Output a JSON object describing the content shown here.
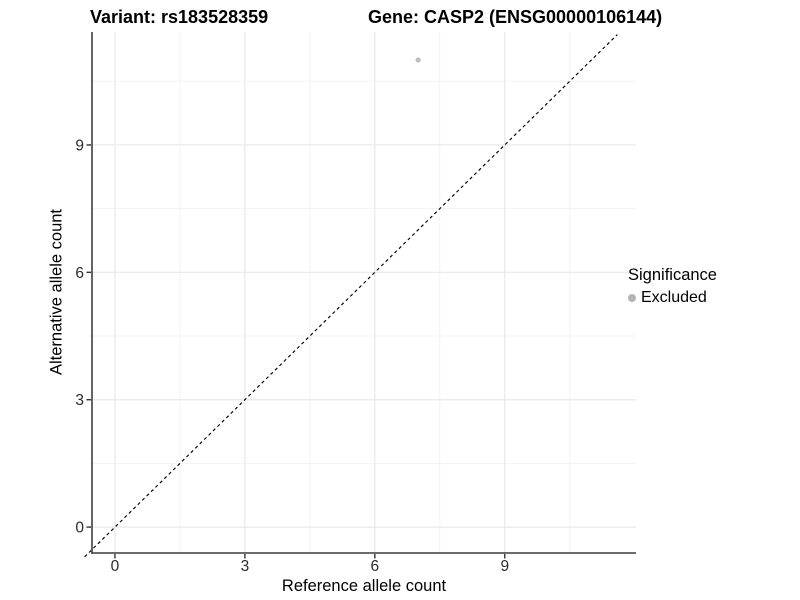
{
  "chart_data": {
    "type": "scatter",
    "titles": {
      "left": "Variant: rs183528359",
      "right": "Gene: CASP2 (ENSG00000106144)"
    },
    "x_axis": {
      "label": "Reference allele count",
      "ticks": [
        0,
        3,
        6,
        9
      ],
      "minor_gridlines": [
        1.5,
        4.5,
        7.5,
        10.5
      ],
      "range": [
        -0.53,
        12.03
      ]
    },
    "y_axis": {
      "label": "Alternative allele count",
      "ticks": [
        0,
        3,
        6,
        9
      ],
      "minor_gridlines": [
        1.5,
        4.5,
        7.5,
        10.5
      ],
      "range": [
        -0.61,
        11.66
      ]
    },
    "series": [
      {
        "name": "Excluded",
        "color": "#bdbdbd",
        "points": [
          {
            "x": 7,
            "y": 11
          }
        ]
      }
    ],
    "reference_line": {
      "equation": "y = x",
      "style": "dashed",
      "color": "#000000",
      "span": [
        -0.7,
        11.6
      ]
    },
    "legend": {
      "position": "right",
      "title": "Significance",
      "items": [
        {
          "label": "Excluded",
          "color": "#b5b5b5"
        }
      ]
    },
    "grid": {
      "major": true,
      "minor": true,
      "major_color": "#e8e8e8",
      "minor_color": "#f3f3f3"
    },
    "axis_color": "#3d3d3d",
    "tick_color": "#333333"
  }
}
